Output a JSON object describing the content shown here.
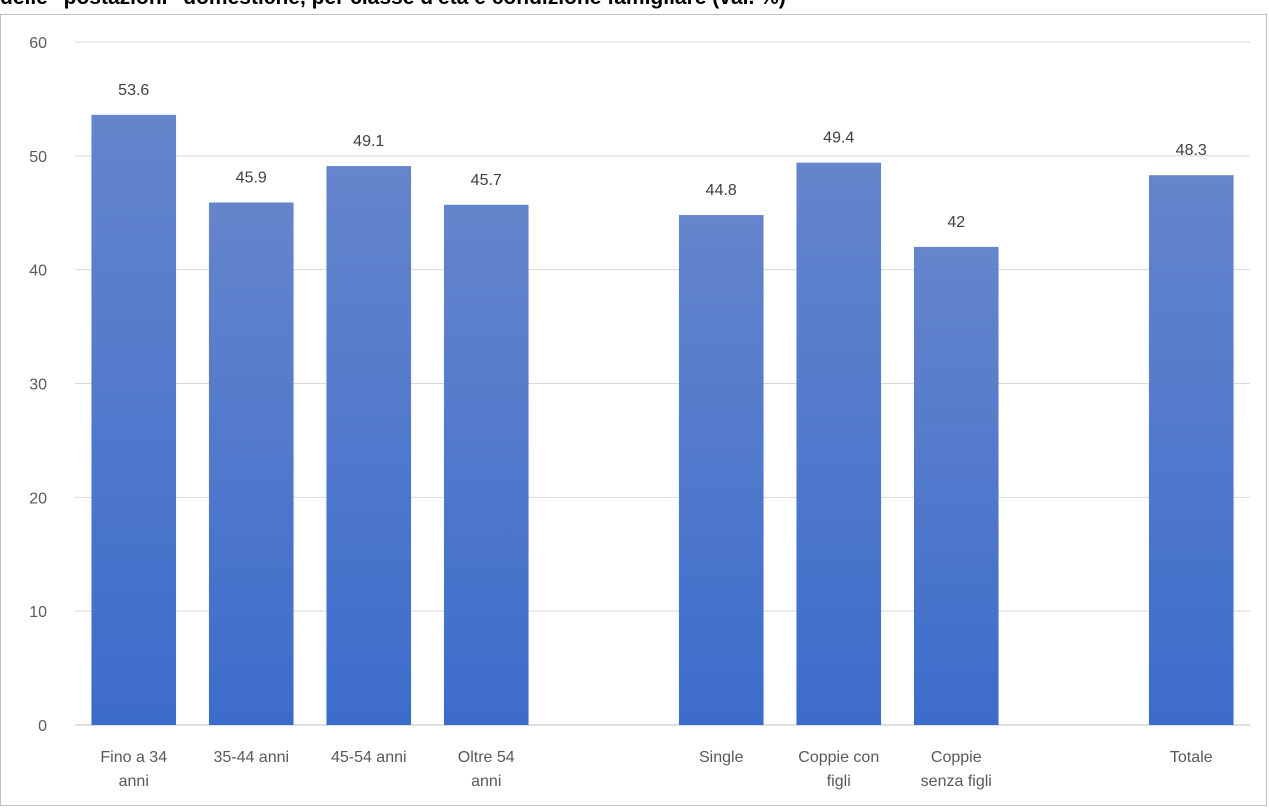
{
  "chart_data": {
    "type": "bar",
    "title": "delle \"postazioni\" domestiche, per classe d'età e condizione famigliare (val. %)",
    "categories": [
      [
        "Fino a 34",
        "anni"
      ],
      [
        "35-44 anni"
      ],
      [
        "45-54 anni"
      ],
      [
        "Oltre 54",
        "anni"
      ],
      [],
      [
        "Single"
      ],
      [
        "Coppie con",
        "figli"
      ],
      [
        "Coppie",
        "senza figli"
      ],
      [],
      [
        "Totale"
      ]
    ],
    "values": [
      53.6,
      45.9,
      49.1,
      45.7,
      null,
      44.8,
      49.4,
      42,
      null,
      48.3
    ],
    "data_labels": [
      "53.6",
      "45.9",
      "49.1",
      "45.7",
      "",
      "44.8",
      "49.4",
      "42",
      "",
      "48.3"
    ],
    "ylim": [
      0,
      60
    ],
    "yticks": [
      0,
      10,
      20,
      30,
      40,
      50,
      60
    ],
    "grid": true,
    "legend": "none",
    "colors": {
      "bar_top": "#6585cc",
      "bar_bottom": "#3c6ccb",
      "grid": "#d9d9d9",
      "axis": "#bfbfbf"
    }
  }
}
